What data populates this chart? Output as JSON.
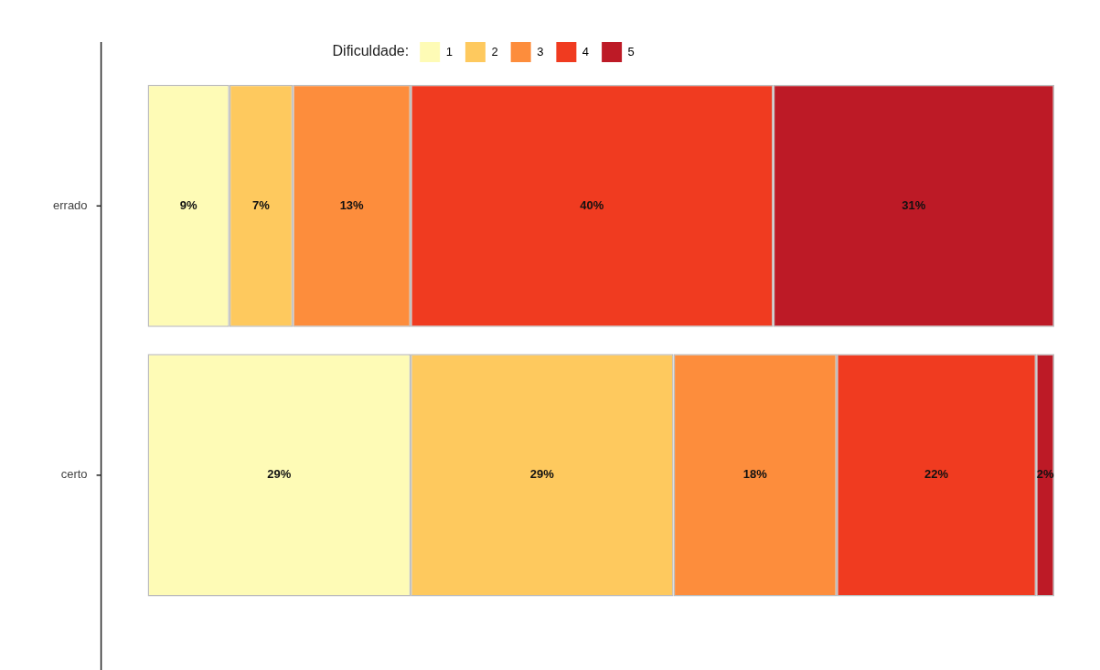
{
  "chart_data": {
    "type": "bar",
    "orientation": "horizontal",
    "stacked": true,
    "legend": "top",
    "legend_title": "Dificuldade:",
    "tick_labels": "y",
    "xlim": [
      0,
      100
    ],
    "categories": [
      "errado",
      "certo"
    ],
    "series": [
      {
        "name": "1",
        "color": "#fefbb6",
        "values": [
          9,
          29
        ],
        "value_labels": [
          "9%",
          "29%"
        ]
      },
      {
        "name": "2",
        "color": "#fec95e",
        "values": [
          7,
          29
        ],
        "value_labels": [
          "7%",
          "29%"
        ]
      },
      {
        "name": "3",
        "color": "#fd8d3c",
        "values": [
          13,
          18
        ],
        "value_labels": [
          "13%",
          "18%"
        ]
      },
      {
        "name": "4",
        "color": "#f03b20",
        "values": [
          40,
          22
        ],
        "value_labels": [
          "40%",
          "22%"
        ]
      },
      {
        "name": "5",
        "color": "#bd1a26",
        "values": [
          31,
          2
        ],
        "value_labels": [
          "31%",
          "2%"
        ]
      }
    ]
  }
}
